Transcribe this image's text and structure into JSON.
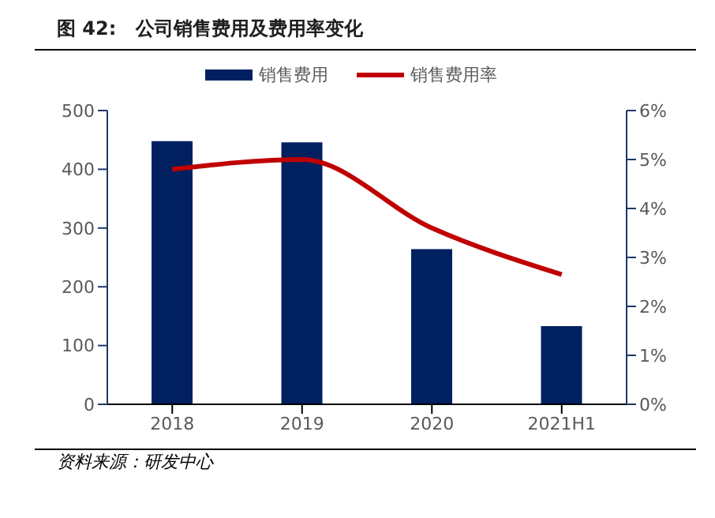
{
  "chart_data": {
    "type": "bar",
    "title": "图 42:   公司销售费用及费用率变化",
    "categories": [
      "2018",
      "2019",
      "2020",
      "2021H1"
    ],
    "series": [
      {
        "name": "销售费用",
        "color": "#002060",
        "values": [
          448,
          446,
          264,
          133
        ]
      },
      {
        "name": "销售费用率",
        "type": "line",
        "axis": "y2",
        "color": "#c00000",
        "values": [
          4.8,
          5.0,
          3.6,
          2.65
        ]
      }
    ],
    "ylim": [
      0,
      500
    ],
    "yticks": [
      0,
      100,
      200,
      300,
      400,
      500
    ],
    "y2lim": [
      0,
      6
    ],
    "y2ticks": [
      {
        "value": 0,
        "label": "0%"
      },
      {
        "value": 1,
        "label": "1%"
      },
      {
        "value": 2,
        "label": "2%"
      },
      {
        "value": 3,
        "label": "3%"
      },
      {
        "value": 4,
        "label": "4%"
      },
      {
        "value": 5,
        "label": "5%"
      },
      {
        "value": 6,
        "label": "6%"
      }
    ],
    "legend": "top",
    "marker": "none",
    "annotations": [
      "资料来源：研发中心"
    ]
  }
}
